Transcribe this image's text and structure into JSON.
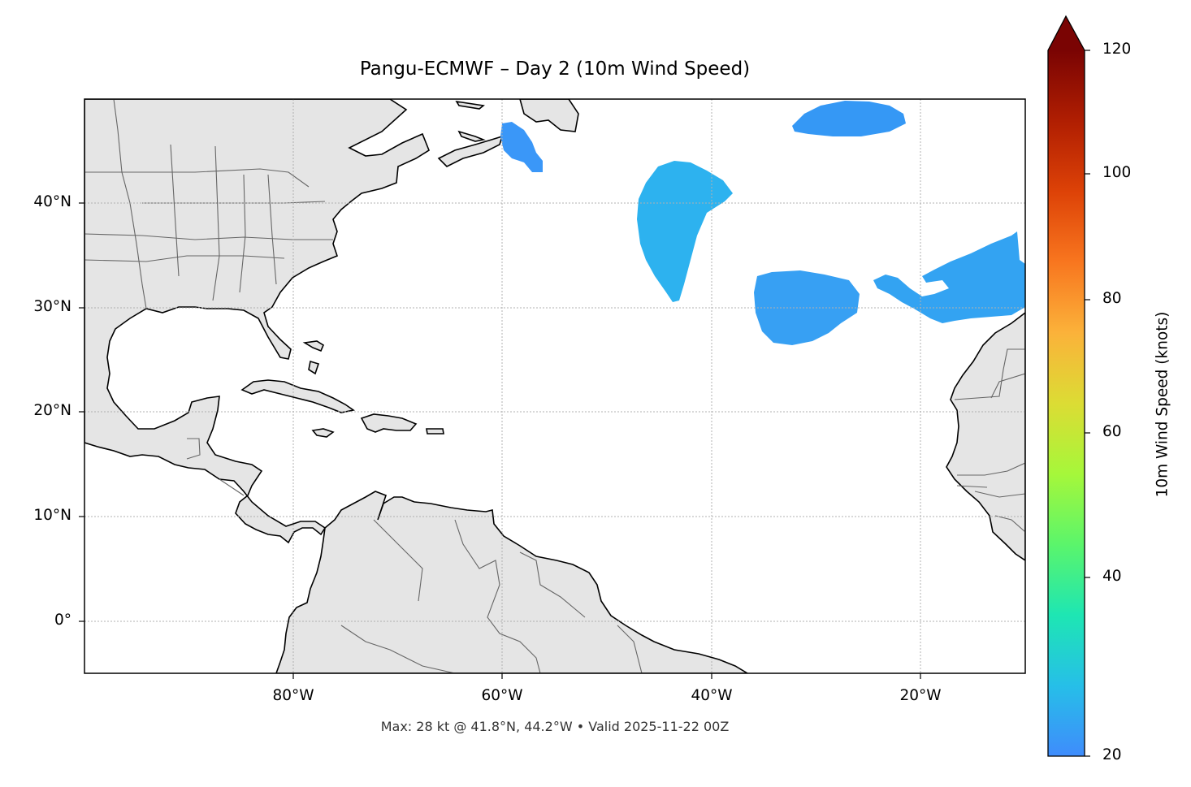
{
  "title": "Pangu-ECMWF – Day 2 (10m Wind Speed)",
  "footer": "Max: 28 kt @ 41.8°N, 44.2°W • Valid 2025-11-22 00Z",
  "map": {
    "extent": {
      "lon_min": -100,
      "lon_max": -10,
      "lat_min": -5,
      "lat_max": 50
    },
    "x_ticks": [
      "80°W",
      "60°W",
      "40°W",
      "20°W"
    ],
    "y_ticks": [
      "40°N",
      "30°N",
      "20°N",
      "10°N",
      "0°"
    ],
    "gridlines": true,
    "land_color": "#e5e5e5",
    "coast_color": "#000000",
    "border_color": "#666666"
  },
  "colorbar": {
    "label": "10m Wind Speed (knots)",
    "ticks": [
      "120",
      "100",
      "80",
      "60",
      "40",
      "20"
    ],
    "range": [
      20,
      120
    ],
    "extend": "max",
    "colormap": "turbo-like"
  },
  "wind_regions": [
    {
      "region": "Gulf of St. Lawrence / Newfoundland",
      "approx_speed_kt": 23
    },
    {
      "region": "Central North Atlantic near 44°W",
      "approx_speed_kt": 28
    },
    {
      "region": "North Atlantic near 26°W, 48°N",
      "approx_speed_kt": 24
    },
    {
      "region": "Subtropical Atlantic near 30°W, 30°N",
      "approx_speed_kt": 25
    },
    {
      "region": "Northeast of Canary Islands",
      "approx_speed_kt": 25
    }
  ]
}
